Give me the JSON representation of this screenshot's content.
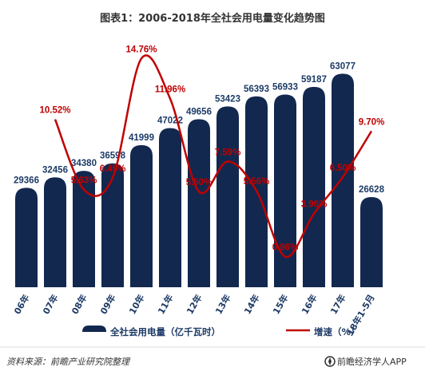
{
  "chart_data": {
    "type": "bar",
    "title": "图表1：2006-2018年全社会用电量变化趋势图",
    "categories": [
      "06年",
      "07年",
      "08年",
      "09年",
      "10年",
      "11年",
      "12年",
      "13年",
      "14年",
      "15年",
      "16年",
      "17年",
      "18年1-5月"
    ],
    "series": [
      {
        "name": "全社会用电量（亿千瓦时）",
        "type": "bar",
        "values": [
          29366,
          32456,
          34380,
          36598,
          41999,
          47022,
          49656,
          53423,
          56393,
          56933,
          59187,
          63077,
          26628
        ],
        "labels": [
          "29366",
          "32456",
          "34380",
          "36598",
          "41999",
          "47022",
          "49656",
          "53423",
          "56393",
          "56933",
          "59187",
          "63077",
          "26628"
        ],
        "color": "#12284f"
      },
      {
        "name": "增速（%）",
        "type": "line",
        "values": [
          null,
          10.52,
          5.63,
          6.45,
          14.76,
          11.96,
          5.5,
          7.59,
          5.56,
          0.96,
          3.96,
          6.5,
          9.7
        ],
        "labels": [
          "",
          "10.52%",
          "5.63%",
          "6.45%",
          "14.76%",
          "11.96%",
          "5.50%",
          "7.59%",
          "5.56%",
          "0.96%",
          "3.96%",
          "6.50%",
          "9.70%"
        ],
        "color": "#c00000"
      }
    ],
    "legend_position": "bottom",
    "grid": false
  },
  "footer": {
    "source": "资料来源：前瞻产业研究院整理",
    "brand": "前瞻经济学人APP"
  },
  "colors": {
    "bar": "#12284f",
    "line": "#c00000",
    "text": "#1d3b66"
  }
}
